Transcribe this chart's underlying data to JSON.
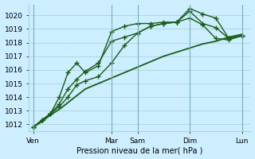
{
  "title": "",
  "xlabel": "Pression niveau de la mer( hPa )",
  "bg_color": "#cceeff",
  "grid_color": "#aad4d4",
  "line_color": "#1a5c1a",
  "ylim": [
    1011.5,
    1020.8
  ],
  "xlim": [
    -2,
    100
  ],
  "xtick_positions": [
    0,
    36,
    48,
    72,
    96
  ],
  "xtick_labels": [
    "Ven",
    "Mar",
    "Sam",
    "Dim",
    "Lun"
  ],
  "yticks": [
    1012,
    1013,
    1014,
    1015,
    1016,
    1017,
    1018,
    1019,
    1020
  ],
  "vlines": [
    0,
    36,
    48,
    72,
    96
  ],
  "series": [
    {
      "x": [
        0,
        4,
        8,
        12,
        16,
        20,
        24,
        30,
        36,
        42,
        48,
        54,
        60,
        66,
        72,
        78,
        84,
        90,
        96
      ],
      "y": [
        1011.8,
        1012.2,
        1012.7,
        1013.1,
        1013.6,
        1014.1,
        1014.6,
        1015.0,
        1015.4,
        1015.8,
        1016.2,
        1016.6,
        1017.0,
        1017.3,
        1017.6,
        1017.9,
        1018.1,
        1018.4,
        1018.6
      ],
      "marker": null,
      "linestyle": "-",
      "linewidth": 1.3
    },
    {
      "x": [
        0,
        4,
        8,
        12,
        16,
        20,
        24,
        30,
        36,
        42,
        48,
        54,
        60,
        66,
        72,
        78,
        84,
        90,
        96
      ],
      "y": [
        1011.8,
        1012.3,
        1012.8,
        1013.3,
        1014.0,
        1014.9,
        1015.2,
        1015.5,
        1016.5,
        1017.8,
        1018.7,
        1019.2,
        1019.4,
        1019.5,
        1019.8,
        1019.3,
        1018.3,
        1018.2,
        1018.5
      ],
      "marker": "+",
      "linestyle": "-",
      "linewidth": 1.0
    },
    {
      "x": [
        0,
        4,
        8,
        12,
        16,
        20,
        24,
        30,
        36,
        42,
        48,
        54,
        60,
        66,
        72,
        78,
        84,
        90,
        96
      ],
      "y": [
        1011.8,
        1012.3,
        1012.8,
        1013.5,
        1014.6,
        1015.3,
        1015.9,
        1016.5,
        1018.1,
        1018.4,
        1018.7,
        1019.2,
        1019.4,
        1019.5,
        1020.3,
        1019.4,
        1019.1,
        1018.3,
        1018.5
      ],
      "marker": "+",
      "linestyle": "-",
      "linewidth": 1.0
    },
    {
      "x": [
        0,
        4,
        8,
        12,
        16,
        20,
        24,
        30,
        36,
        42,
        48,
        54,
        60,
        66,
        72,
        78,
        84,
        90,
        96
      ],
      "y": [
        1011.8,
        1012.3,
        1012.8,
        1014.0,
        1015.8,
        1016.5,
        1015.8,
        1016.3,
        1018.8,
        1019.2,
        1019.4,
        1019.4,
        1019.5,
        1019.5,
        1020.5,
        1020.1,
        1019.8,
        1018.3,
        1018.5
      ],
      "marker": "+",
      "linestyle": "-",
      "linewidth": 1.0
    }
  ]
}
